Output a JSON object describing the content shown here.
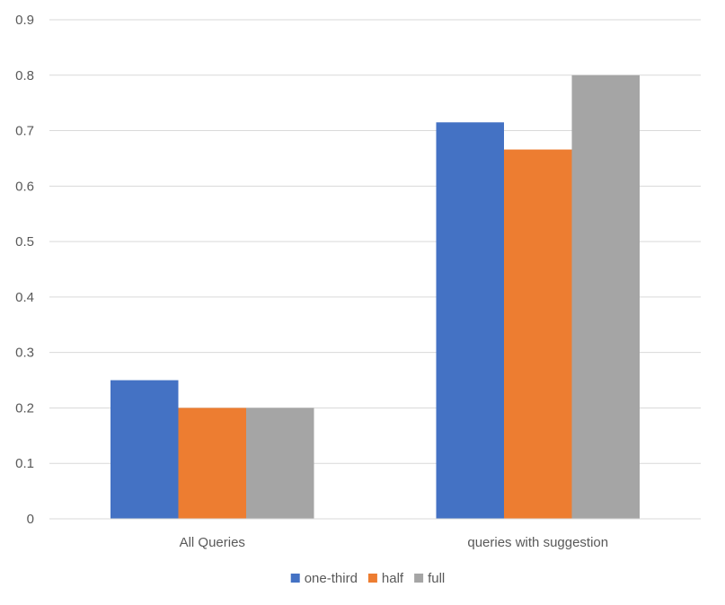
{
  "chart_data": {
    "type": "bar",
    "categories": [
      "All Queries",
      "queries with suggestion"
    ],
    "series": [
      {
        "name": "one-third",
        "values": [
          0.25,
          0.715
        ],
        "color": "#4472C4"
      },
      {
        "name": "half",
        "values": [
          0.2,
          0.666
        ],
        "color": "#ED7D31"
      },
      {
        "name": "full",
        "values": [
          0.2,
          0.8
        ],
        "color": "#A5A5A5"
      }
    ],
    "yticks": [
      "0",
      "0.1",
      "0.2",
      "0.3",
      "0.4",
      "0.5",
      "0.6",
      "0.7",
      "0.8",
      "0.9"
    ],
    "ylim": [
      0,
      0.9
    ],
    "grid": true,
    "legend_position": "bottom",
    "title": "",
    "xlabel": "",
    "ylabel": ""
  }
}
